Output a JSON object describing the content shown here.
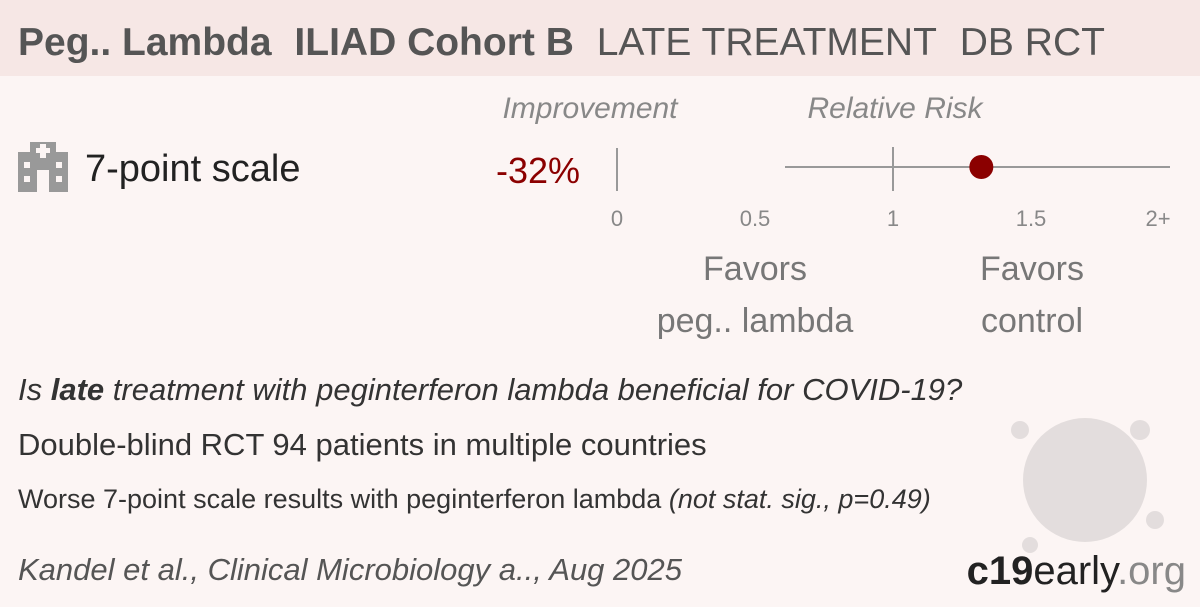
{
  "header": {
    "title_parts": [
      "Peg.. Lambda",
      "ILIAD Cohort B",
      "LATE TREATMENT",
      "DB RCT"
    ]
  },
  "columns": {
    "improvement": "Improvement",
    "relative_risk": "Relative Risk"
  },
  "outcome": {
    "label": "7-point scale",
    "improvement": "-32%",
    "relative_risk": 1.32
  },
  "scale": {
    "lim": [
      0,
      2
    ],
    "ticks": [
      0,
      0.5,
      1,
      1.5,
      {
        "value": 2,
        "label": "2+"
      }
    ]
  },
  "favors": {
    "left": [
      "Favors",
      "peg.. lambda"
    ],
    "right": [
      "Favors",
      "control"
    ]
  },
  "summary": {
    "question": [
      "Is",
      "late",
      "treatment with peginterferon lambda beneficial for COVID-19?"
    ],
    "design": "Double-blind RCT 94 patients in multiple countries",
    "result": [
      "Worse 7-point scale results with peginterferon lambda",
      "(not stat. sig., p=0.49)"
    ]
  },
  "footer": {
    "citation": "Kandel et al., Clinical Microbiology a.., Aug 2025",
    "logo": [
      "c19",
      "early",
      ".org"
    ]
  }
}
